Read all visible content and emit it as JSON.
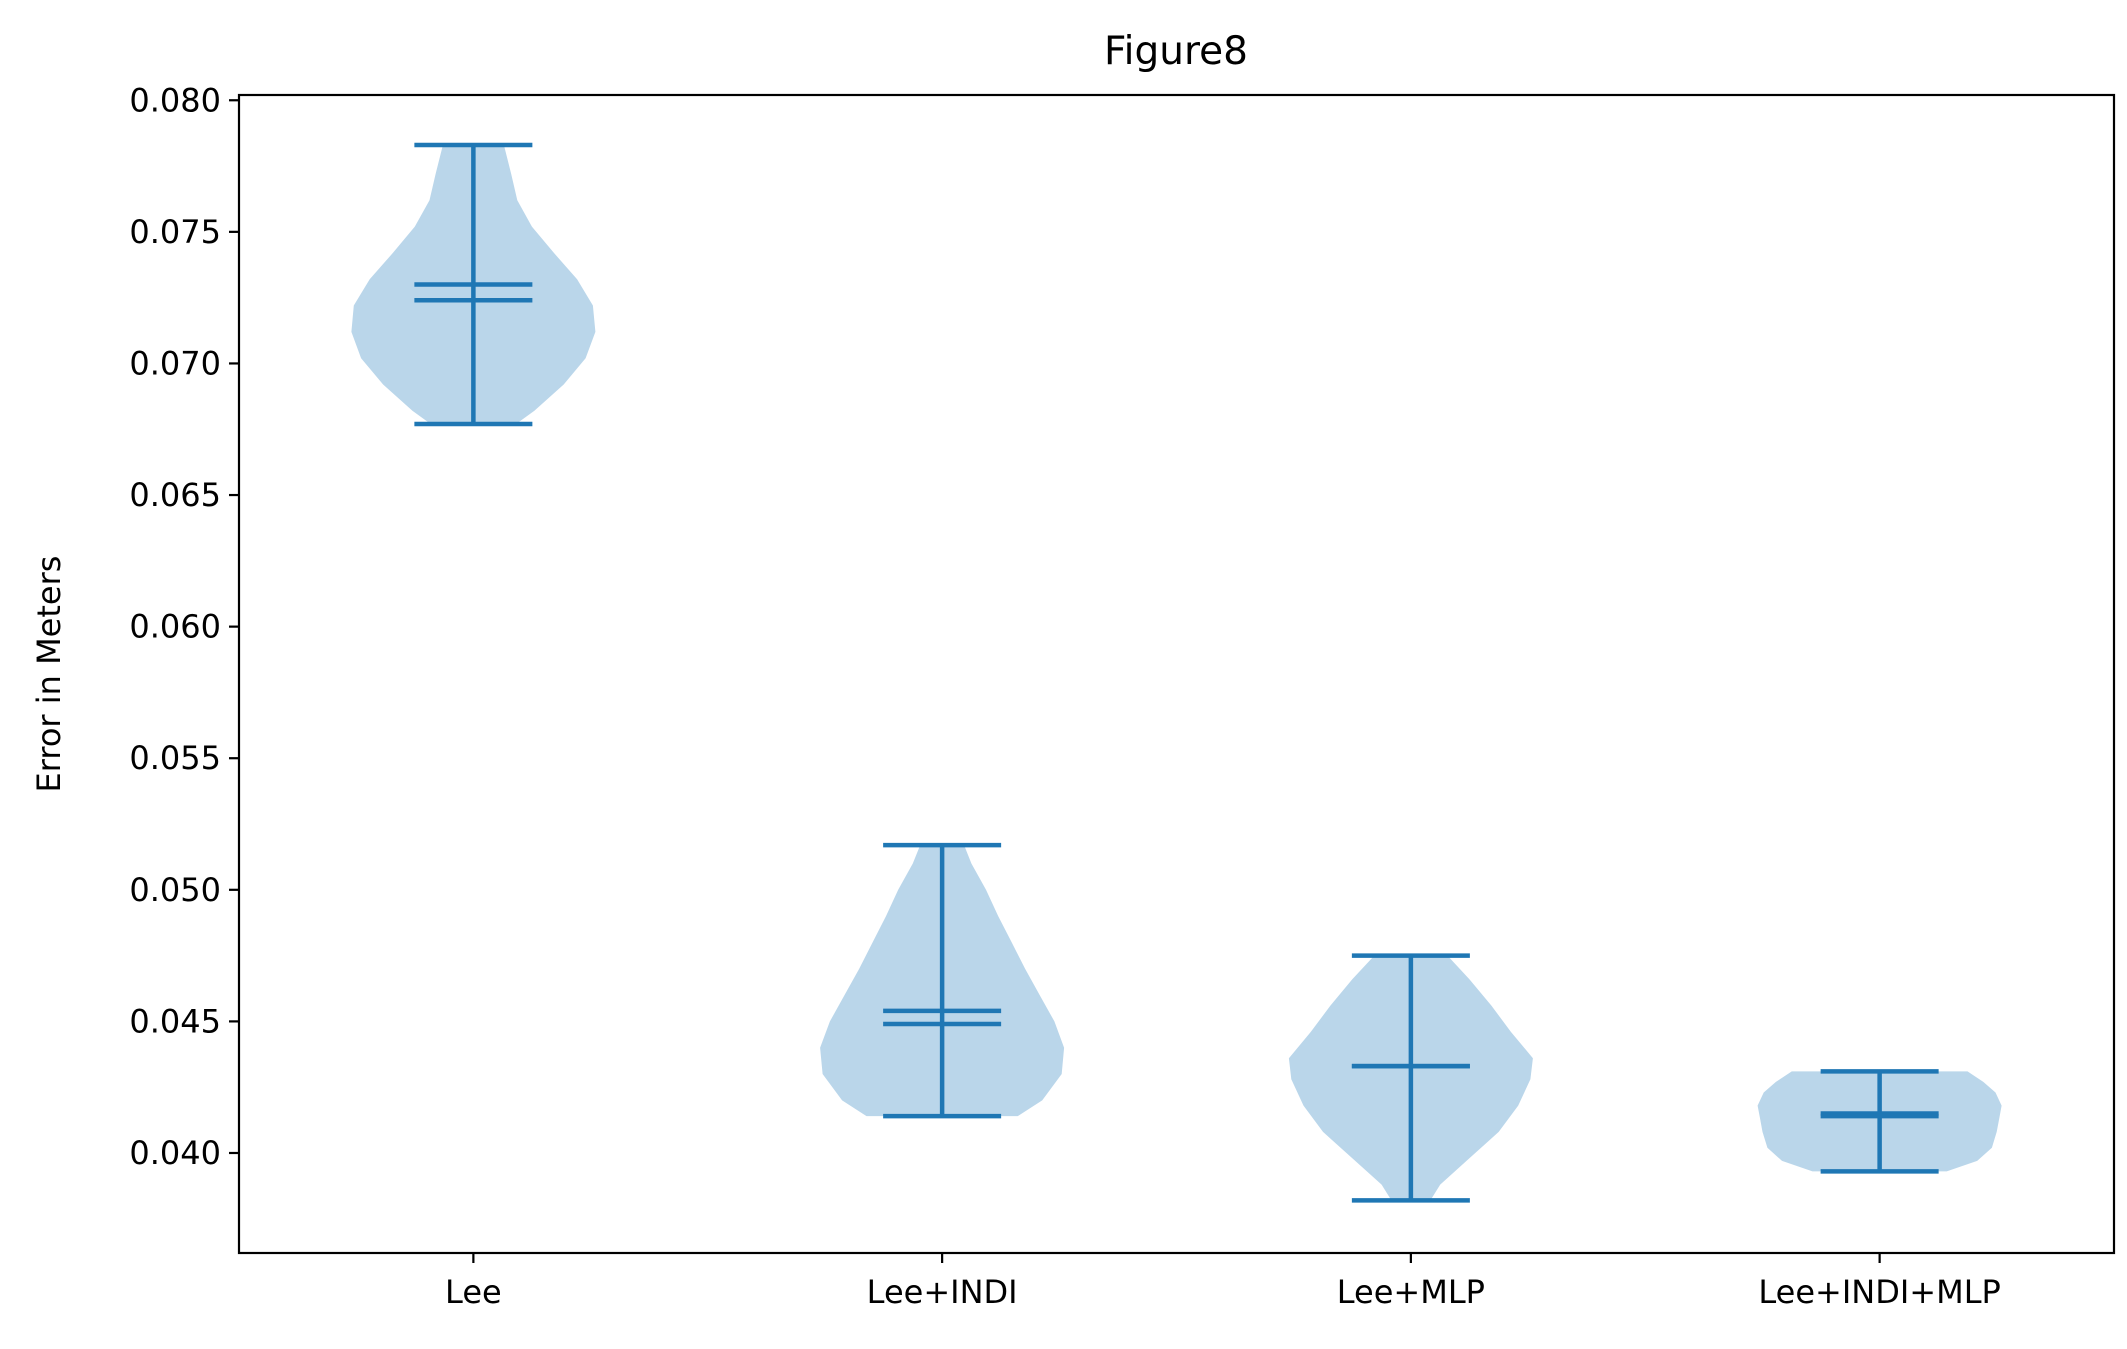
{
  "chart_data": {
    "type": "violin",
    "title": "Figure8",
    "xlabel": "",
    "ylabel": "Error in Meters",
    "ylim": [
      0.0362,
      0.0802
    ],
    "yticks": [
      0.04,
      0.045,
      0.05,
      0.055,
      0.06,
      0.065,
      0.07,
      0.075,
      0.08
    ],
    "ytick_labels": [
      "0.040",
      "0.045",
      "0.050",
      "0.055",
      "0.060",
      "0.065",
      "0.070",
      "0.075",
      "0.080"
    ],
    "categories": [
      "Lee",
      "Lee+INDI",
      "Lee+MLP",
      "Lee+INDI+MLP"
    ],
    "grid": false,
    "colors": {
      "body": "#bad6ea",
      "line": "#1f77b4"
    },
    "violins": [
      {
        "category": "Lee",
        "min": 0.0677,
        "max": 0.0783,
        "mean": 0.073,
        "median": 0.0724,
        "density": [
          [
            0.0677,
            0.35
          ],
          [
            0.0682,
            0.5
          ],
          [
            0.0692,
            0.74
          ],
          [
            0.0702,
            0.92
          ],
          [
            0.0712,
            1.0
          ],
          [
            0.0722,
            0.98
          ],
          [
            0.0732,
            0.85
          ],
          [
            0.0742,
            0.66
          ],
          [
            0.0752,
            0.48
          ],
          [
            0.0762,
            0.36
          ],
          [
            0.0772,
            0.31
          ],
          [
            0.0783,
            0.25
          ]
        ]
      },
      {
        "category": "Lee+INDI",
        "min": 0.0414,
        "max": 0.0517,
        "mean": 0.0454,
        "median": 0.0449,
        "density": [
          [
            0.0414,
            0.62
          ],
          [
            0.042,
            0.82
          ],
          [
            0.043,
            0.98
          ],
          [
            0.044,
            1.0
          ],
          [
            0.045,
            0.92
          ],
          [
            0.046,
            0.8
          ],
          [
            0.047,
            0.68
          ],
          [
            0.048,
            0.57
          ],
          [
            0.049,
            0.46
          ],
          [
            0.05,
            0.36
          ],
          [
            0.051,
            0.24
          ],
          [
            0.0517,
            0.18
          ]
        ]
      },
      {
        "category": "Lee+MLP",
        "min": 0.0382,
        "max": 0.0475,
        "mean": 0.0433,
        "median": 0.0433,
        "density": [
          [
            0.0382,
            0.16
          ],
          [
            0.0388,
            0.24
          ],
          [
            0.0398,
            0.48
          ],
          [
            0.0408,
            0.72
          ],
          [
            0.0418,
            0.88
          ],
          [
            0.0428,
            0.98
          ],
          [
            0.0436,
            1.0
          ],
          [
            0.0446,
            0.82
          ],
          [
            0.0456,
            0.66
          ],
          [
            0.0466,
            0.48
          ],
          [
            0.0475,
            0.3
          ]
        ]
      },
      {
        "category": "Lee+INDI+MLP",
        "min": 0.0393,
        "max": 0.0431,
        "mean": 0.0415,
        "median": 0.0414,
        "density": [
          [
            0.0393,
            0.55
          ],
          [
            0.0397,
            0.8
          ],
          [
            0.0402,
            0.92
          ],
          [
            0.0408,
            0.96
          ],
          [
            0.0413,
            0.98
          ],
          [
            0.0418,
            1.0
          ],
          [
            0.0423,
            0.95
          ],
          [
            0.0427,
            0.85
          ],
          [
            0.0431,
            0.72
          ]
        ]
      }
    ]
  }
}
